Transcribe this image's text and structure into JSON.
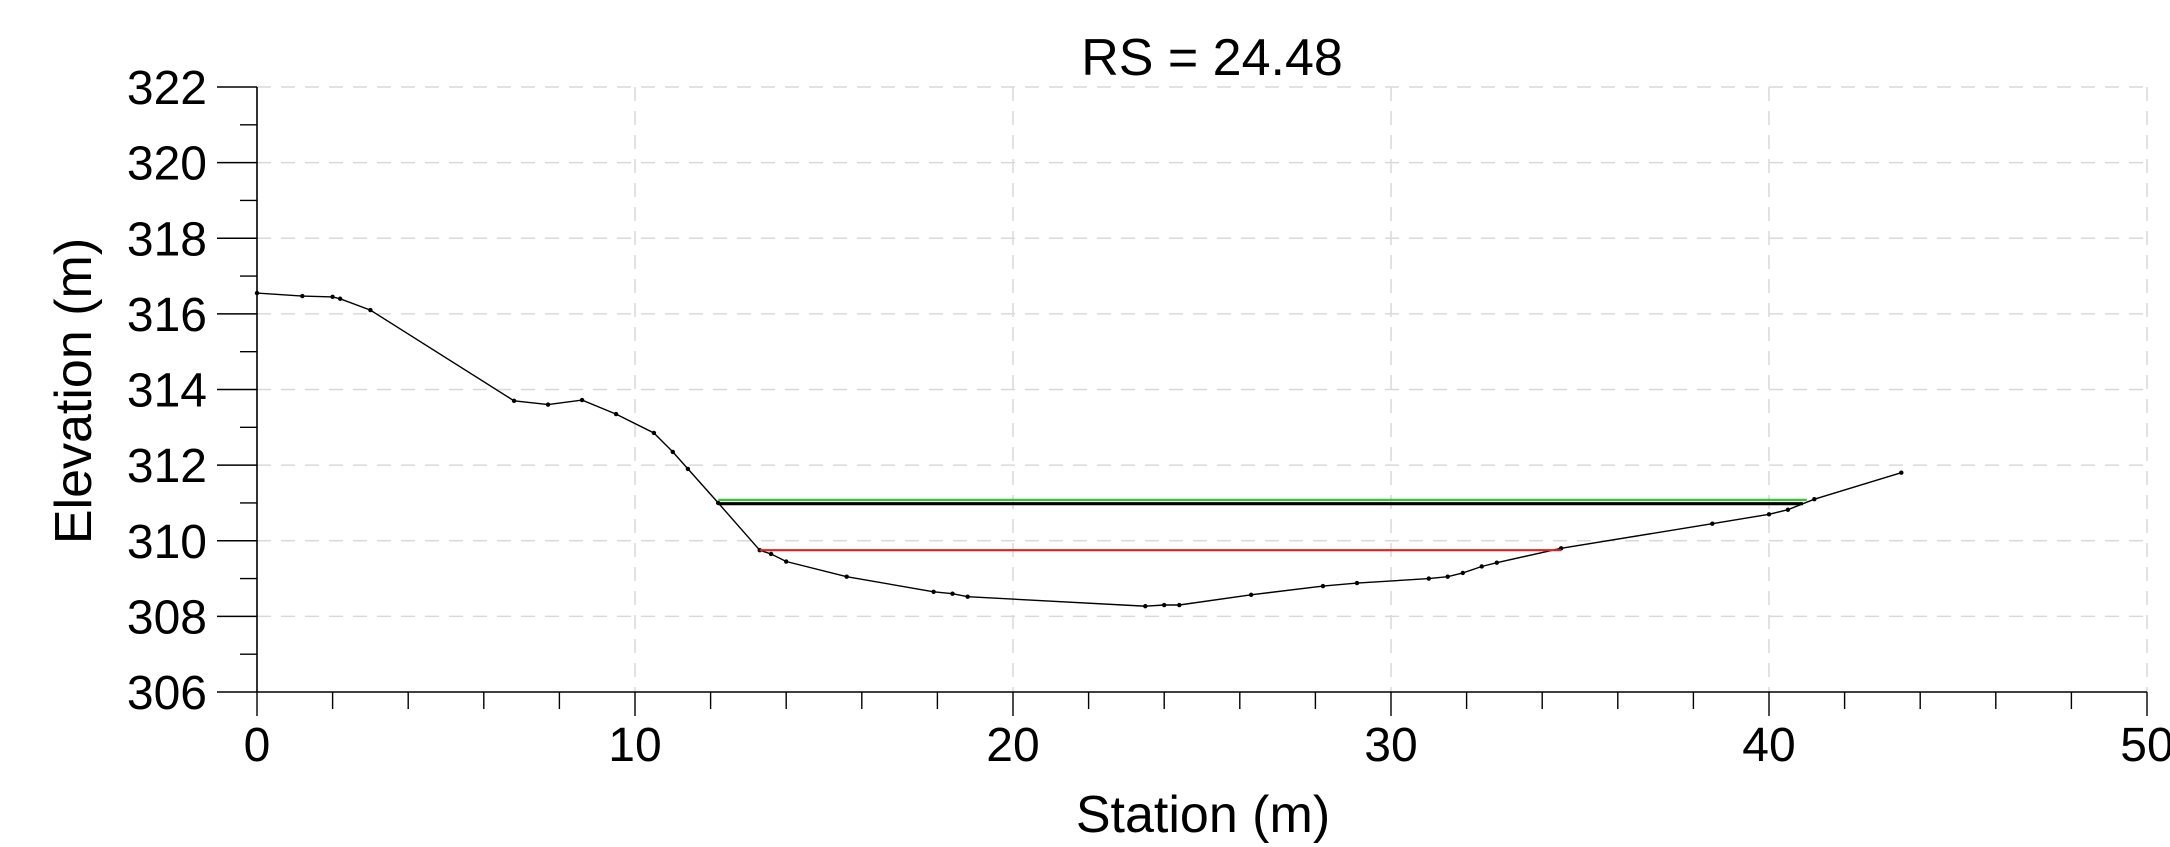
{
  "chart_data": {
    "type": "line",
    "title": "RS = 24.48",
    "xlabel": "Station (m)",
    "ylabel": "Elevation (m)",
    "xlim": [
      0,
      50
    ],
    "ylim": [
      306,
      322
    ],
    "x_ticks": [
      0,
      10,
      20,
      30,
      40,
      50
    ],
    "y_ticks": [
      306,
      308,
      310,
      312,
      314,
      316,
      318,
      320,
      322
    ],
    "grid": true,
    "series": [
      {
        "kind": "ground",
        "color": "#000000",
        "points": [
          [
            0,
            316.55
          ],
          [
            1.2,
            316.47
          ],
          [
            2.0,
            316.45
          ],
          [
            2.2,
            316.4
          ],
          [
            3.0,
            316.1
          ],
          [
            6.8,
            313.7
          ],
          [
            7.7,
            313.6
          ],
          [
            8.6,
            313.72
          ],
          [
            9.5,
            313.35
          ],
          [
            10.5,
            312.85
          ],
          [
            11.0,
            312.35
          ],
          [
            11.4,
            311.9
          ],
          [
            12.2,
            311.0
          ],
          [
            13.3,
            309.75
          ],
          [
            13.6,
            309.65
          ],
          [
            14.0,
            309.45
          ],
          [
            15.6,
            309.05
          ],
          [
            17.9,
            308.65
          ],
          [
            18.4,
            308.6
          ],
          [
            18.8,
            308.52
          ],
          [
            23.5,
            308.27
          ],
          [
            24.0,
            308.3
          ],
          [
            24.4,
            308.3
          ],
          [
            26.3,
            308.57
          ],
          [
            28.2,
            308.8
          ],
          [
            29.1,
            308.88
          ],
          [
            31.0,
            309.0
          ],
          [
            31.5,
            309.05
          ],
          [
            31.9,
            309.15
          ],
          [
            32.4,
            309.32
          ],
          [
            32.8,
            309.42
          ],
          [
            34.5,
            309.8
          ],
          [
            38.5,
            310.45
          ],
          [
            40.0,
            310.7
          ],
          [
            40.5,
            310.82
          ],
          [
            41.2,
            311.1
          ],
          [
            43.5,
            311.8
          ]
        ]
      },
      {
        "kind": "water-surface",
        "color": "#34c734",
        "points": [
          [
            12.2,
            311.08
          ],
          [
            41.0,
            311.08
          ]
        ]
      },
      {
        "kind": "water-surface",
        "color": "#000000",
        "points": [
          [
            12.2,
            310.98
          ],
          [
            40.9,
            310.98
          ]
        ]
      },
      {
        "kind": "water-surface",
        "color": "#e02020",
        "points": [
          [
            13.3,
            309.75
          ],
          [
            34.5,
            309.75
          ]
        ]
      }
    ]
  }
}
